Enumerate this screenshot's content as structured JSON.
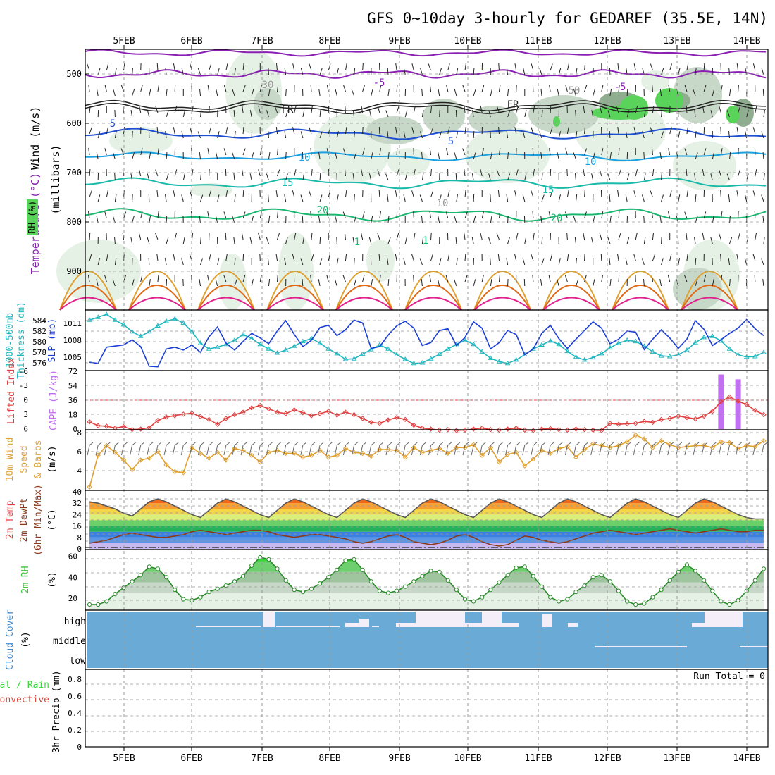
{
  "title": "GFS 0~10day 3-hourly for GEDAREF (35.5E, 14N)",
  "dates": [
    "5FEB",
    "6FEB",
    "7FEB",
    "8FEB",
    "9FEB",
    "10FEB",
    "11FEB",
    "12FEB",
    "13FEB",
    "14FEB"
  ],
  "colors": {
    "rh_light": "#e6f1e6",
    "rh_mid": "#c8d8c8",
    "rh_dark": "#8fae8f",
    "rh_green": "#5ad35a",
    "temp_purple": "#8a1fb3",
    "temp_blue": "#1f4fd1",
    "temp_cyan": "#1aa0e0",
    "temp_teal": "#17b9a8",
    "temp_green": "#18b870",
    "temp_orange": "#e0a030",
    "temp_dorange": "#e06a18",
    "temp_magenta": "#e0208c",
    "slp": "#1a3dd6",
    "thickness": "#20b8c0",
    "lifted": "#e04040",
    "cape": "#c070f0",
    "wind10": "#e0a030",
    "rh2m": "#3ac83a",
    "cloud": "#6aaad6",
    "cloud_clear": "#f3eef8"
  },
  "panels": {
    "upper": {
      "ylabel_wind": "Wind (m/s)",
      "ylabel_temp": "Temperature (°C)",
      "ylabel_rh": "RH (%)",
      "ylabel_mb": "(millibars)",
      "yticks": [
        "500",
        "600",
        "700",
        "800",
        "900"
      ],
      "contour_labels": [
        "-5",
        "-5",
        "5",
        "5",
        "10",
        "10",
        "15",
        "15",
        "20",
        "20",
        "FR",
        "FR",
        "30",
        "50",
        "10",
        "1",
        "1"
      ]
    },
    "slp": {
      "ylabel1": "1000-500mb",
      "ylabel2": "Thickness (dm)",
      "ylabel3": "SLP (mb)",
      "thickness_ticks": [
        "584",
        "582",
        "580",
        "578",
        "576"
      ],
      "slp_ticks": [
        "1011",
        "1008",
        "1005"
      ]
    },
    "li": {
      "ylabel1": "Lifted Index",
      "ylabel2": "CAPE (J/kg)",
      "li_ticks": [
        "-3",
        "0",
        "3",
        "6"
      ],
      "li_top": "-6",
      "cape_ticks": [
        "72",
        "54",
        "36",
        "18",
        "0"
      ]
    },
    "wind10": {
      "ylabel1": "10m Wind",
      "ylabel2": "Speed",
      "ylabel3": "& Barbs",
      "ylabel4": "(m/s)",
      "yticks": [
        "8",
        "6",
        "4"
      ]
    },
    "temp2m": {
      "ylabel1": "2m Temp",
      "ylabel2": "2m DewPt",
      "ylabel3": "(6hr Min/Max)",
      "ylabel4": "(°C)",
      "yticks": [
        "40",
        "32",
        "24",
        "16",
        "8",
        "0"
      ]
    },
    "rh2m": {
      "ylabel1": "2m RH",
      "ylabel2": "(%)",
      "yticks": [
        "60",
        "40",
        "20"
      ]
    },
    "cloud": {
      "ylabel1": "Cloud Cover",
      "ylabel2": "(%)",
      "levels": [
        "high",
        "middle",
        "low"
      ]
    },
    "precip": {
      "ylabel1": "Total / Rain",
      "ylabel2": "Convective",
      "ylabel3": "3hr Precip (mm)",
      "yticks": [
        "0.8",
        "0.6",
        "0.4",
        "0.2",
        "0"
      ],
      "run_total": "Run Total = 0"
    }
  },
  "chart_data": [
    {
      "type": "line",
      "title": "1000-500mb Thickness (dm) / SLP (mb)",
      "series": [
        {
          "name": "SLP (mb)",
          "ylim": [
            1003,
            1013
          ],
          "values": [
            1004.2,
            1004.0,
            1006.8,
            1007.0,
            1007.2,
            1008.1,
            1006.9,
            1003.5,
            1003.4,
            1006.5,
            1006.8,
            1006.3,
            1007.2,
            1005.9,
            1008.6,
            1010.3,
            1007.5,
            1006.3,
            1007.8,
            1009.2,
            1008.4,
            1007.4,
            1009.6,
            1011.4,
            1009.0,
            1006.9,
            1008.0,
            1010.2,
            1010.6,
            1008.8,
            1009.8,
            1011.5,
            1011.0,
            1006.6,
            1006.9,
            1008.9,
            1010.5,
            1011.3,
            1010.1,
            1007.1,
            1007.6,
            1009.7,
            1010.0,
            1007.1,
            1008.5,
            1011.2,
            1010.1,
            1006.5,
            1007.6,
            1009.7,
            1009.0,
            1005.5,
            1006.5,
            1009.2,
            1010.6,
            1008.3,
            1006.6,
            1008.2,
            1009.7,
            1011.2,
            1010.1,
            1007.4,
            1008.2,
            1009.6,
            1009.4,
            1006.4,
            1008.2,
            1009.8,
            1008.4,
            1006.6,
            1008.2,
            1011.4,
            1009.9,
            1007.1,
            1008.1,
            1009.2,
            1010.1,
            1011.6,
            1010.0,
            1008.8
          ]
        },
        {
          "name": "Thickness (dm)",
          "ylim": [
            575.5,
            585.5
          ],
          "values": [
            584.0,
            584.5,
            585.0,
            584.0,
            583.2,
            582.0,
            581.2,
            582.0,
            583.0,
            583.8,
            584.2,
            583.5,
            582.0,
            580.0,
            579.0,
            579.3,
            579.8,
            580.5,
            581.5,
            580.8,
            579.8,
            579.0,
            578.3,
            578.8,
            579.5,
            580.3,
            580.8,
            580.0,
            579.0,
            578.2,
            577.2,
            577.3,
            578.1,
            578.9,
            579.7,
            579.0,
            578.0,
            577.2,
            576.5,
            576.6,
            577.3,
            578.1,
            579.0,
            579.8,
            580.5,
            579.8,
            578.5,
            577.4,
            576.8,
            576.5,
            577.1,
            578.0,
            579.0,
            579.7,
            580.4,
            579.8,
            578.6,
            577.6,
            577.1,
            577.5,
            578.2,
            579.2,
            580.0,
            580.5,
            580.3,
            579.5,
            578.5,
            577.8,
            577.7,
            578.0,
            578.8,
            580.1,
            581.0,
            581.2,
            580.4,
            579.0,
            578.0,
            577.6,
            577.7,
            578.4
          ]
        }
      ]
    },
    {
      "type": "line",
      "title": "Lifted Index / CAPE (J/kg)",
      "series": [
        {
          "name": "Lifted Index",
          "ylim": [
            6,
            -6
          ],
          "values": [
            4.5,
            5.3,
            5.4,
            5.8,
            5.5,
            6.1,
            6.0,
            5.7,
            4.2,
            3.5,
            3.2,
            2.9,
            2.7,
            3.4,
            4.0,
            5.0,
            3.8,
            3.0,
            2.5,
            1.6,
            1.1,
            1.8,
            2.5,
            2.8,
            2.0,
            2.6,
            3.2,
            2.8,
            2.3,
            3.1,
            2.5,
            3.0,
            3.8,
            4.6,
            4.8,
            4.1,
            3.6,
            4.0,
            5.2,
            5.8,
            6.0,
            6.2,
            6.1,
            6.3,
            6.2,
            6.0,
            5.8,
            6.1,
            6.2,
            6.0,
            5.8,
            6.2,
            6.3,
            6.0,
            5.9,
            6.1,
            6.2,
            6.0,
            6.1,
            6.2,
            6.3,
            4.8,
            5.0,
            4.9,
            4.8,
            4.4,
            4.6,
            4.0,
            3.8,
            3.3,
            3.6,
            3.9,
            3.3,
            2.3,
            0.3,
            -0.7,
            0.2,
            0.9,
            2.1,
            3.0
          ]
        },
        {
          "name": "CAPE (J/kg)",
          "ylim": [
            0,
            72
          ],
          "values": [
            0,
            0,
            0,
            0,
            0,
            0,
            0,
            0,
            0,
            0,
            0,
            0,
            0,
            0,
            0,
            0,
            0,
            0,
            0,
            0,
            0,
            0,
            0,
            0,
            0,
            0,
            0,
            0,
            0,
            0,
            0,
            0,
            0,
            0,
            0,
            0,
            0,
            0,
            0,
            0,
            0,
            0,
            0,
            0,
            0,
            0,
            0,
            0,
            0,
            0,
            0,
            0,
            0,
            0,
            0,
            0,
            0,
            0,
            0,
            0,
            0,
            0,
            0,
            0,
            0,
            0,
            0,
            0,
            0,
            0,
            0,
            0,
            0,
            0,
            68,
            0,
            62,
            0,
            0,
            0
          ]
        }
      ]
    },
    {
      "type": "line",
      "title": "10m Wind Speed & Barbs (m/s)",
      "series": [
        {
          "name": "10m Wind Speed",
          "ylim": [
            2,
            8
          ],
          "values": [
            2.2,
            5.5,
            6.5,
            5.8,
            5.0,
            4.0,
            5.0,
            5.2,
            5.9,
            4.5,
            3.8,
            3.7,
            6.3,
            5.7,
            5.2,
            5.8,
            5.0,
            6.2,
            6.0,
            5.5,
            4.8,
            5.8,
            6.0,
            5.7,
            5.7,
            5.3,
            5.5,
            6.0,
            5.3,
            5.5,
            6.2,
            5.8,
            5.7,
            5.4,
            6.1,
            6.1,
            6.0,
            5.3,
            6.3,
            5.8,
            6.0,
            6.2,
            5.7,
            6.3,
            6.3,
            6.6,
            5.5,
            6.3,
            4.8,
            5.6,
            5.8,
            4.4,
            5.1,
            6.0,
            5.7,
            6.2,
            6.4,
            5.3,
            6.1,
            6.7,
            6.5,
            6.3,
            6.5,
            6.9,
            7.6,
            7.2,
            6.3,
            7.0,
            6.6,
            6.3,
            6.4,
            6.5,
            6.5,
            6.3,
            6.9,
            6.8,
            6.2,
            6.5,
            6.4,
            7.0
          ]
        }
      ]
    },
    {
      "type": "area",
      "title": "2m Temp / 2m DewPt (6hr Min/Max) (°C)",
      "series": [
        {
          "name": "2m Temp",
          "ylim": [
            0,
            40
          ],
          "values": [
            33,
            32,
            30,
            28,
            25,
            23,
            28,
            33,
            35,
            33,
            30,
            27,
            24,
            22,
            27,
            32,
            35,
            33,
            30,
            27,
            24,
            22,
            27,
            32,
            35,
            33,
            30,
            27,
            24,
            22,
            27,
            32,
            35,
            33,
            30,
            27,
            24,
            22,
            27,
            32,
            35,
            33,
            30,
            27,
            24,
            22,
            27,
            32,
            35,
            33,
            30,
            27,
            24,
            22,
            27,
            32,
            35,
            33,
            30,
            27,
            24,
            22,
            27,
            32,
            35,
            33,
            30,
            27,
            24,
            22,
            27,
            32,
            35,
            33,
            30,
            27,
            24,
            22,
            21,
            21
          ]
        },
        {
          "name": "2m DewPt",
          "ylim": [
            0,
            40
          ],
          "values": [
            4,
            5,
            6,
            8,
            10,
            11,
            10,
            9,
            8,
            8,
            9,
            10,
            12,
            13,
            12,
            11,
            10,
            11,
            12,
            13,
            13,
            12,
            10,
            9,
            8,
            9,
            10,
            10,
            9,
            8,
            7,
            5,
            4,
            5,
            7,
            9,
            10,
            8,
            5,
            4,
            3,
            4,
            6,
            9,
            10,
            8,
            5,
            3,
            2,
            3,
            6,
            9,
            8,
            6,
            5,
            4,
            5,
            7,
            9,
            11,
            12,
            13,
            12,
            11,
            10,
            11,
            12,
            13,
            14,
            13,
            12,
            11,
            12,
            13,
            14,
            13,
            12,
            12,
            13,
            13
          ]
        }
      ]
    },
    {
      "type": "area",
      "title": "2m RH (%)",
      "series": [
        {
          "name": "2m RH",
          "ylim": [
            10,
            65
          ],
          "values": [
            14,
            14,
            17,
            24,
            30,
            36,
            42,
            50,
            48,
            40,
            28,
            19,
            18,
            21,
            26,
            29,
            32,
            36,
            41,
            51,
            59,
            57,
            48,
            37,
            28,
            26,
            29,
            34,
            40,
            47,
            56,
            57,
            47,
            36,
            27,
            25,
            27,
            31,
            36,
            41,
            46,
            45,
            37,
            28,
            19,
            17,
            21,
            28,
            35,
            42,
            49,
            50,
            41,
            31,
            21,
            17,
            19,
            26,
            32,
            40,
            42,
            36,
            27,
            17,
            14,
            15,
            21,
            28,
            37,
            45,
            52,
            46,
            37,
            27,
            17,
            14,
            18,
            27,
            37,
            48
          ]
        }
      ]
    },
    {
      "type": "bar",
      "title": "3hr Precip (mm)",
      "ylim": [
        0,
        0.9
      ],
      "values": [],
      "annotations": [
        "Run Total = 0"
      ]
    }
  ]
}
